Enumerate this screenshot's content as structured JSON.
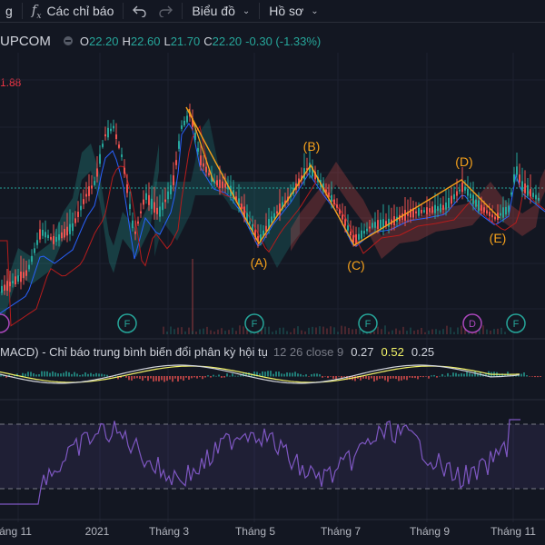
{
  "toolbar": {
    "compare_fragment": "g",
    "indicators_label": "Các chỉ báo",
    "chart_label": "Biểu đồ",
    "profile_label": "Hồ sơ"
  },
  "legend": {
    "symbol": "UPCOM",
    "open_label": "O",
    "open": "22.20",
    "high_label": "H",
    "high": "22.60",
    "low_label": "L",
    "low": "21.70",
    "close_label": "C",
    "close": "22.20",
    "change": "-0.30 (-1.33%)"
  },
  "price_marker": "1.88",
  "wave_labels": [
    "(A)",
    "(B)",
    "(C)",
    "(D)",
    "(E)"
  ],
  "event_markers": [
    "F",
    "F",
    "F",
    "D",
    "F"
  ],
  "macd": {
    "title": "MACD) - Chỉ báo trung bình biến đổi phân kỳ hội tụ",
    "params": "12 26 close 9",
    "v1": "0.27",
    "v2": "0.52",
    "v3": "0.25"
  },
  "time_axis": [
    "áng 11",
    "2021",
    "Tháng 3",
    "Tháng 5",
    "Tháng 7",
    "Tháng 9",
    "Tháng 11"
  ],
  "colors": {
    "up": "#26a69a",
    "down": "#ef5350",
    "wave": "#f7a21b",
    "accent": "#2962ff",
    "rsi": "#7e57c2"
  }
}
